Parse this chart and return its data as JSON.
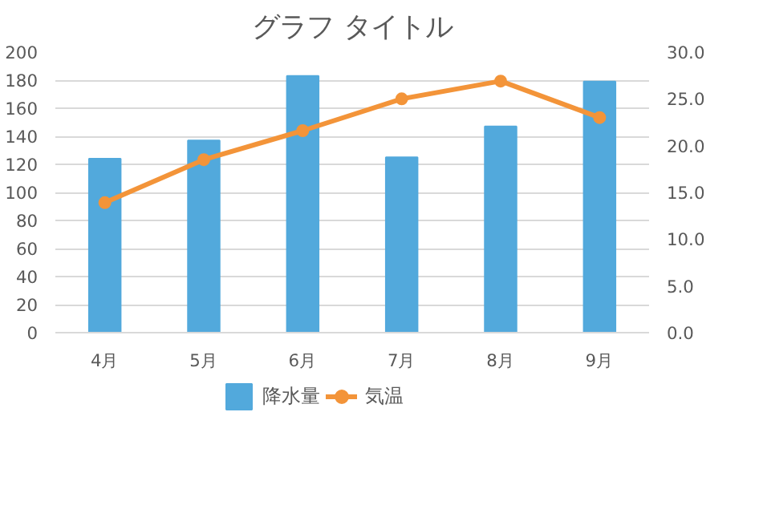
{
  "chart_data": {
    "type": "bar",
    "title": "グラフ タイトル",
    "categories": [
      "4月",
      "5月",
      "6月",
      "7月",
      "8月",
      "9月"
    ],
    "series": [
      {
        "name": "降水量",
        "color": "#52a9dc",
        "values": [
          124,
          137,
          183,
          125,
          147,
          179
        ]
      },
      {
        "name": "気温",
        "color": "#f39439",
        "type": "line",
        "axis": "y2",
        "marker": "circle",
        "values": [
          13.9,
          18.5,
          21.6,
          25.0,
          26.9,
          23.0
        ]
      }
    ],
    "ylim": [
      0,
      200
    ],
    "yticks": [
      0,
      20,
      40,
      60,
      80,
      100,
      120,
      140,
      160,
      180,
      200
    ],
    "y2lim": [
      0,
      30
    ],
    "y2ticks": [
      {
        "value": 0,
        "label": "0.0"
      },
      {
        "value": 5,
        "label": "5.0"
      },
      {
        "value": 10,
        "label": "10.0"
      },
      {
        "value": 15,
        "label": "15.0"
      },
      {
        "value": 20,
        "label": "20.0"
      },
      {
        "value": 25,
        "label": "25.0"
      },
      {
        "value": 30,
        "label": "30.0"
      }
    ],
    "grid": "y",
    "legend": "bottom"
  }
}
